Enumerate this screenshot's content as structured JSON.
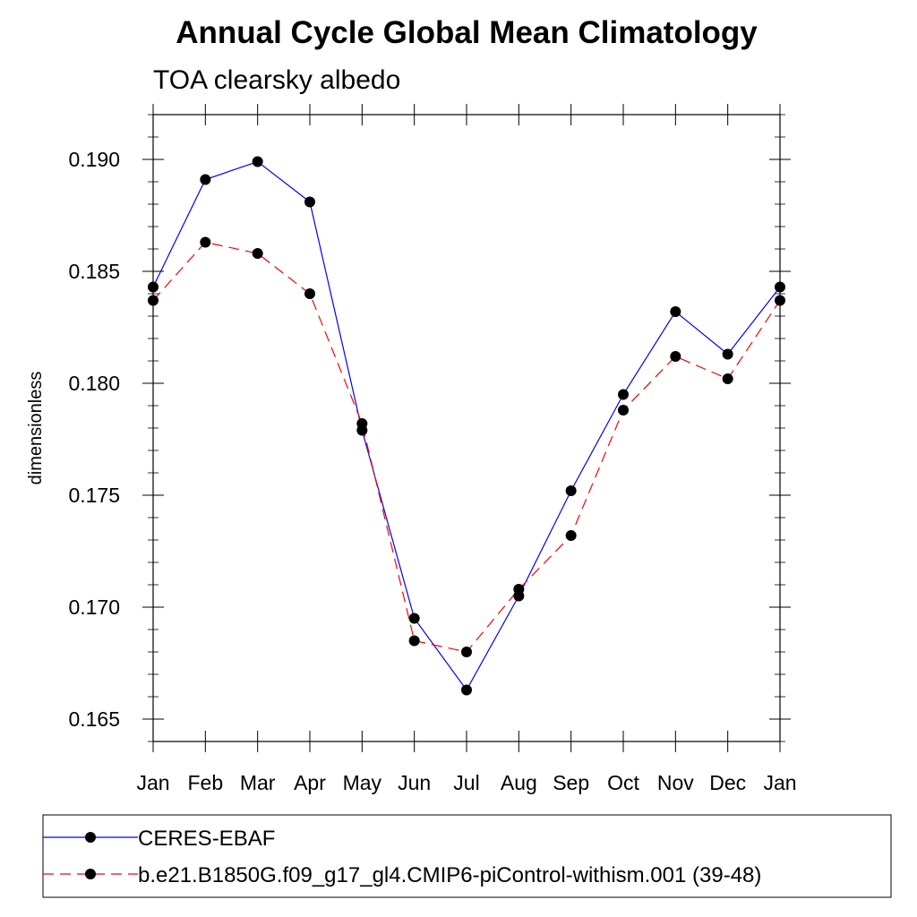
{
  "chart_data": {
    "type": "line",
    "title": "Annual Cycle Global Mean Climatology",
    "subtitle": "TOA clearsky albedo",
    "xlabel": "",
    "ylabel": "dimensionless",
    "categories": [
      "Jan",
      "Feb",
      "Mar",
      "Apr",
      "May",
      "Jun",
      "Jul",
      "Aug",
      "Sep",
      "Oct",
      "Nov",
      "Dec",
      "Jan"
    ],
    "ylim": [
      0.164,
      0.192
    ],
    "yticks": [
      0.165,
      0.17,
      0.175,
      0.18,
      0.185,
      0.19
    ],
    "ytick_labels": [
      "0.165",
      "0.170",
      "0.175",
      "0.180",
      "0.185",
      "0.190"
    ],
    "grid": false,
    "legend_position": "bottom",
    "series": [
      {
        "name": "CERES-EBAF",
        "color": "#0000ff",
        "line_style": "solid",
        "marker": "filled-circle",
        "values": [
          0.1843,
          0.1891,
          0.1899,
          0.1881,
          0.1779,
          0.1695,
          0.1663,
          0.1705,
          0.1752,
          0.1795,
          0.1832,
          0.1813,
          0.1843
        ]
      },
      {
        "name": "b.e21.B1850G.f09_g17_gl4.CMIP6-piControl-withism.001 (39-48)",
        "color": "#ff0000",
        "line_style": "dashed",
        "marker": "filled-circle",
        "values": [
          0.1837,
          0.1863,
          0.1858,
          0.184,
          0.1782,
          0.1685,
          0.168,
          0.1708,
          0.1732,
          0.1788,
          0.1812,
          0.1802,
          0.1837
        ]
      }
    ]
  }
}
